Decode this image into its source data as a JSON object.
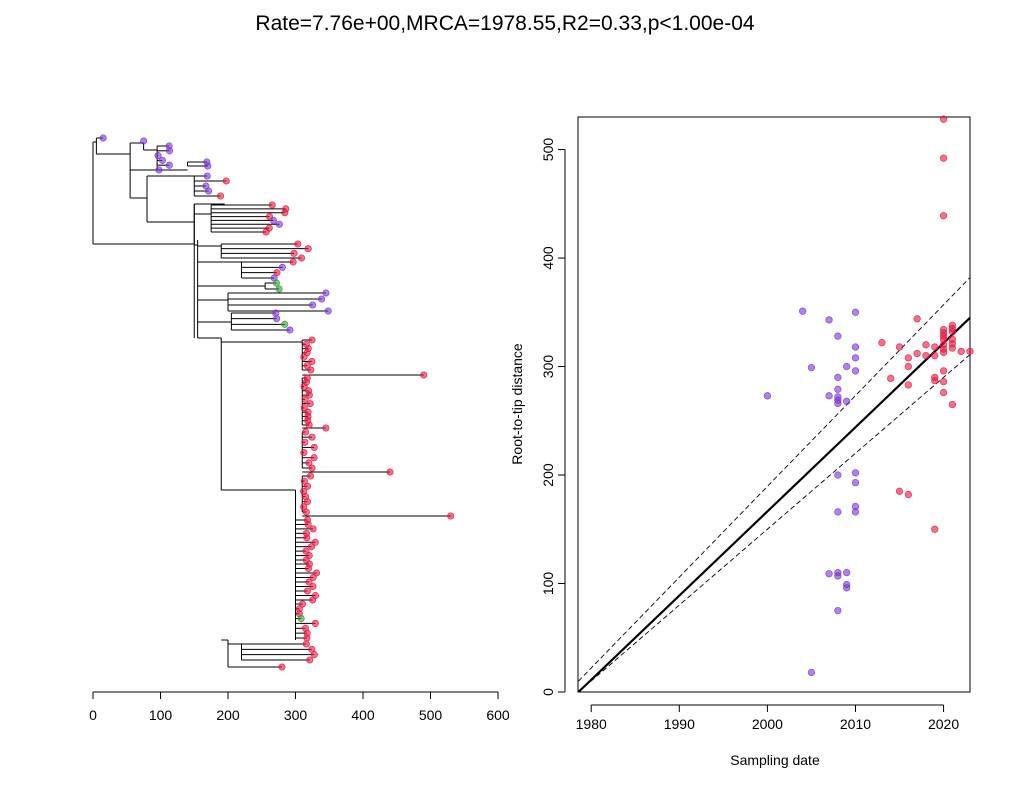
{
  "title": "Rate=7.76e+00,MRCA=1978.55,R2=0.33,p<1.00e-04",
  "colors": {
    "red": "#e8143c",
    "purple": "#7a30d8",
    "green": "#2e9a2e",
    "line": "#000000"
  },
  "chart_data": [
    {
      "type": "tree",
      "name": "phylogenetic-tree",
      "xlabel": "",
      "xlim": [
        0,
        600
      ],
      "xticks": [
        0,
        100,
        200,
        300,
        400,
        500,
        600
      ],
      "tip_count": 120
    },
    {
      "type": "scatter",
      "name": "root-to-tip",
      "xlabel": "Sampling date",
      "ylabel": "Root-to-tip distance",
      "xlim": [
        1978.5,
        2023
      ],
      "ylim": [
        0,
        530
      ],
      "xticks": [
        1980,
        1990,
        2000,
        2010,
        2020
      ],
      "yticks": [
        0,
        100,
        200,
        300,
        400,
        500
      ],
      "regression": {
        "slope": 7.76,
        "intercept_x": 1978.55
      },
      "confidence_band": {
        "upper": [
          [
            1978.55,
            10
          ],
          [
            2023,
            382
          ]
        ],
        "lower": [
          [
            1978.55,
            0
          ],
          [
            2023,
            311
          ]
        ]
      },
      "points": [
        {
          "x": 2020,
          "y": 528,
          "c": "red"
        },
        {
          "x": 2020,
          "y": 492,
          "c": "red"
        },
        {
          "x": 2020,
          "y": 439,
          "c": "red"
        },
        {
          "x": 2004,
          "y": 351,
          "c": "purple"
        },
        {
          "x": 2010,
          "y": 350,
          "c": "purple"
        },
        {
          "x": 2007,
          "y": 343,
          "c": "purple"
        },
        {
          "x": 2017,
          "y": 344,
          "c": "red"
        },
        {
          "x": 2021,
          "y": 338,
          "c": "red"
        },
        {
          "x": 2021,
          "y": 335,
          "c": "red"
        },
        {
          "x": 2021,
          "y": 332,
          "c": "red"
        },
        {
          "x": 2020,
          "y": 334,
          "c": "red"
        },
        {
          "x": 2020,
          "y": 331,
          "c": "red"
        },
        {
          "x": 2020,
          "y": 328,
          "c": "red"
        },
        {
          "x": 2020,
          "y": 325,
          "c": "red"
        },
        {
          "x": 2021,
          "y": 325,
          "c": "red"
        },
        {
          "x": 2021,
          "y": 321,
          "c": "red"
        },
        {
          "x": 2021,
          "y": 317,
          "c": "red"
        },
        {
          "x": 2020,
          "y": 320,
          "c": "red"
        },
        {
          "x": 2020,
          "y": 316,
          "c": "red"
        },
        {
          "x": 2020,
          "y": 313,
          "c": "red"
        },
        {
          "x": 2022,
          "y": 314,
          "c": "red"
        },
        {
          "x": 2023,
          "y": 314,
          "c": "red"
        },
        {
          "x": 2008,
          "y": 328,
          "c": "purple"
        },
        {
          "x": 2010,
          "y": 318,
          "c": "purple"
        },
        {
          "x": 2013,
          "y": 322,
          "c": "red"
        },
        {
          "x": 2015,
          "y": 318,
          "c": "red"
        },
        {
          "x": 2016,
          "y": 308,
          "c": "red"
        },
        {
          "x": 2016,
          "y": 300,
          "c": "red"
        },
        {
          "x": 2017,
          "y": 312,
          "c": "red"
        },
        {
          "x": 2018,
          "y": 320,
          "c": "red"
        },
        {
          "x": 2018,
          "y": 310,
          "c": "red"
        },
        {
          "x": 2019,
          "y": 318,
          "c": "red"
        },
        {
          "x": 2019,
          "y": 310,
          "c": "red"
        },
        {
          "x": 2010,
          "y": 308,
          "c": "purple"
        },
        {
          "x": 2009,
          "y": 300,
          "c": "purple"
        },
        {
          "x": 2005,
          "y": 299,
          "c": "purple"
        },
        {
          "x": 2010,
          "y": 296,
          "c": "purple"
        },
        {
          "x": 2008,
          "y": 290,
          "c": "purple"
        },
        {
          "x": 2014,
          "y": 289,
          "c": "red"
        },
        {
          "x": 2016,
          "y": 283,
          "c": "red"
        },
        {
          "x": 2019,
          "y": 290,
          "c": "red"
        },
        {
          "x": 2019,
          "y": 287,
          "c": "red"
        },
        {
          "x": 2020,
          "y": 296,
          "c": "red"
        },
        {
          "x": 2020,
          "y": 286,
          "c": "red"
        },
        {
          "x": 2020,
          "y": 276,
          "c": "red"
        },
        {
          "x": 2008,
          "y": 279,
          "c": "purple"
        },
        {
          "x": 2007,
          "y": 273,
          "c": "purple"
        },
        {
          "x": 2008,
          "y": 272,
          "c": "purple"
        },
        {
          "x": 2008,
          "y": 269,
          "c": "purple"
        },
        {
          "x": 2008,
          "y": 266,
          "c": "purple"
        },
        {
          "x": 2009,
          "y": 268,
          "c": "purple"
        },
        {
          "x": 2000,
          "y": 273,
          "c": "purple"
        },
        {
          "x": 2021,
          "y": 265,
          "c": "red"
        },
        {
          "x": 2010,
          "y": 202,
          "c": "purple"
        },
        {
          "x": 2008,
          "y": 200,
          "c": "purple"
        },
        {
          "x": 2010,
          "y": 193,
          "c": "purple"
        },
        {
          "x": 2015,
          "y": 185,
          "c": "red"
        },
        {
          "x": 2016,
          "y": 182,
          "c": "red"
        },
        {
          "x": 2010,
          "y": 171,
          "c": "purple"
        },
        {
          "x": 2008,
          "y": 166,
          "c": "purple"
        },
        {
          "x": 2010,
          "y": 166,
          "c": "purple"
        },
        {
          "x": 2019,
          "y": 150,
          "c": "red"
        },
        {
          "x": 2007,
          "y": 109,
          "c": "purple"
        },
        {
          "x": 2008,
          "y": 110,
          "c": "purple"
        },
        {
          "x": 2008,
          "y": 107,
          "c": "purple"
        },
        {
          "x": 2009,
          "y": 110,
          "c": "purple"
        },
        {
          "x": 2009,
          "y": 99,
          "c": "purple"
        },
        {
          "x": 2009,
          "y": 96,
          "c": "purple"
        },
        {
          "x": 2008,
          "y": 75,
          "c": "purple"
        },
        {
          "x": 2005,
          "y": 18,
          "c": "purple"
        }
      ]
    }
  ]
}
